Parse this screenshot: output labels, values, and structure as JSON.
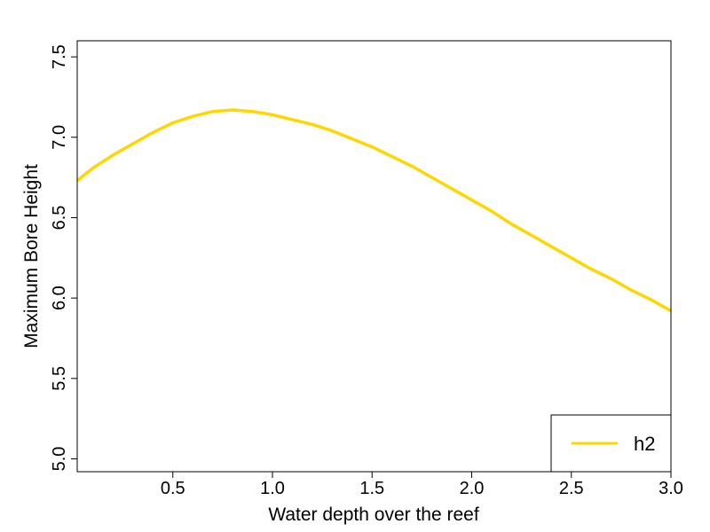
{
  "chart_data": {
    "type": "line",
    "xlabel": "Water depth over the reef",
    "ylabel": "Maximum Bore Height",
    "xlim": [
      0.02,
      3.0
    ],
    "ylim": [
      4.92,
      7.6
    ],
    "xticks": [
      "0.5",
      "1.0",
      "1.5",
      "2.0",
      "2.5",
      "3.0"
    ],
    "yticks": [
      "5.0",
      "5.5",
      "6.0",
      "6.5",
      "7.0",
      "7.5"
    ],
    "grid": false,
    "legend_position": "bottom-right",
    "series": [
      {
        "name": "h2",
        "color": "#FFD700",
        "x": [
          0.02,
          0.1,
          0.2,
          0.3,
          0.4,
          0.5,
          0.6,
          0.7,
          0.8,
          0.9,
          1.0,
          1.1,
          1.2,
          1.3,
          1.4,
          1.5,
          1.6,
          1.7,
          1.8,
          1.9,
          2.0,
          2.1,
          2.2,
          2.3,
          2.4,
          2.5,
          2.6,
          2.7,
          2.8,
          2.9,
          3.0
        ],
        "y": [
          6.73,
          6.81,
          6.89,
          6.96,
          7.03,
          7.09,
          7.13,
          7.16,
          7.17,
          7.16,
          7.14,
          7.11,
          7.08,
          7.04,
          6.99,
          6.94,
          6.88,
          6.82,
          6.75,
          6.68,
          6.61,
          6.54,
          6.46,
          6.39,
          6.32,
          6.25,
          6.18,
          6.12,
          6.05,
          5.99,
          5.92
        ]
      }
    ]
  }
}
